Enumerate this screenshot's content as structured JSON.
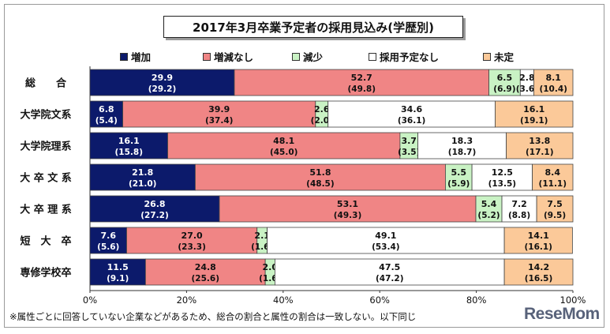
{
  "title": "2017年3月卒業予定者の採用見込み(学歴別)",
  "footnote": "※属性ごとに回答していない企業などがあるため、総合の割合と属性の割合は一致しない。以下同じ",
  "brand": "ReseMom",
  "chart_data": {
    "type": "bar",
    "orientation": "horizontal",
    "stacked": true,
    "categories": [
      "総　　合",
      "大学院文系",
      "大学院理系",
      "大 卒 文 系",
      "大 卒 理 系",
      "短　大　卒",
      "専修学校卒"
    ],
    "series": [
      {
        "name": "増加",
        "color": "#0c1a6b",
        "text_color": "#ffffff",
        "values": [
          29.9,
          6.8,
          16.1,
          21.8,
          26.8,
          7.6,
          11.5
        ],
        "previous": [
          "(29.2)",
          "(5.4)",
          "(15.8)",
          "(21.0)",
          "(27.2)",
          "(5.6)",
          "(9.1)"
        ]
      },
      {
        "name": "増減なし",
        "color": "#f08585",
        "text_color": "#111111",
        "values": [
          52.7,
          39.9,
          48.1,
          51.8,
          53.1,
          27.0,
          24.8
        ],
        "previous": [
          "(49.8)",
          "(37.4)",
          "(45.0)",
          "(48.5)",
          "(49.3)",
          "(23.3)",
          "(25.6)"
        ]
      },
      {
        "name": "減少",
        "color": "#c9f2c4",
        "text_color": "#111111",
        "values": [
          6.5,
          2.6,
          3.7,
          5.5,
          5.4,
          2.1,
          2.0
        ],
        "previous": [
          "(6.9)",
          "(2.0)",
          "(3.5)",
          "(5.9)",
          "(5.2)",
          "(1.6)",
          "(1.6)"
        ]
      },
      {
        "name": "採用予定なし",
        "color": "#ffffff",
        "text_color": "#111111",
        "values": [
          2.8,
          34.6,
          18.3,
          12.5,
          7.2,
          49.1,
          47.5
        ],
        "previous": [
          "(3.6)",
          "(36.1)",
          "(18.7)",
          "(13.5)",
          "(8.8)",
          "(53.4)",
          "(47.2)"
        ]
      },
      {
        "name": "未定",
        "color": "#fbc999",
        "text_color": "#111111",
        "values": [
          8.1,
          16.1,
          13.8,
          8.4,
          7.5,
          14.1,
          14.2
        ],
        "previous": [
          "(10.4)",
          "(19.1)",
          "(17.1)",
          "(11.1)",
          "(9.5)",
          "(16.1)",
          "(16.5)"
        ]
      }
    ],
    "x_ticks": [
      "0%",
      "20%",
      "40%",
      "60%",
      "80%",
      "100%"
    ],
    "xlim": [
      0,
      100
    ],
    "legend_position": "top",
    "grid": false
  }
}
